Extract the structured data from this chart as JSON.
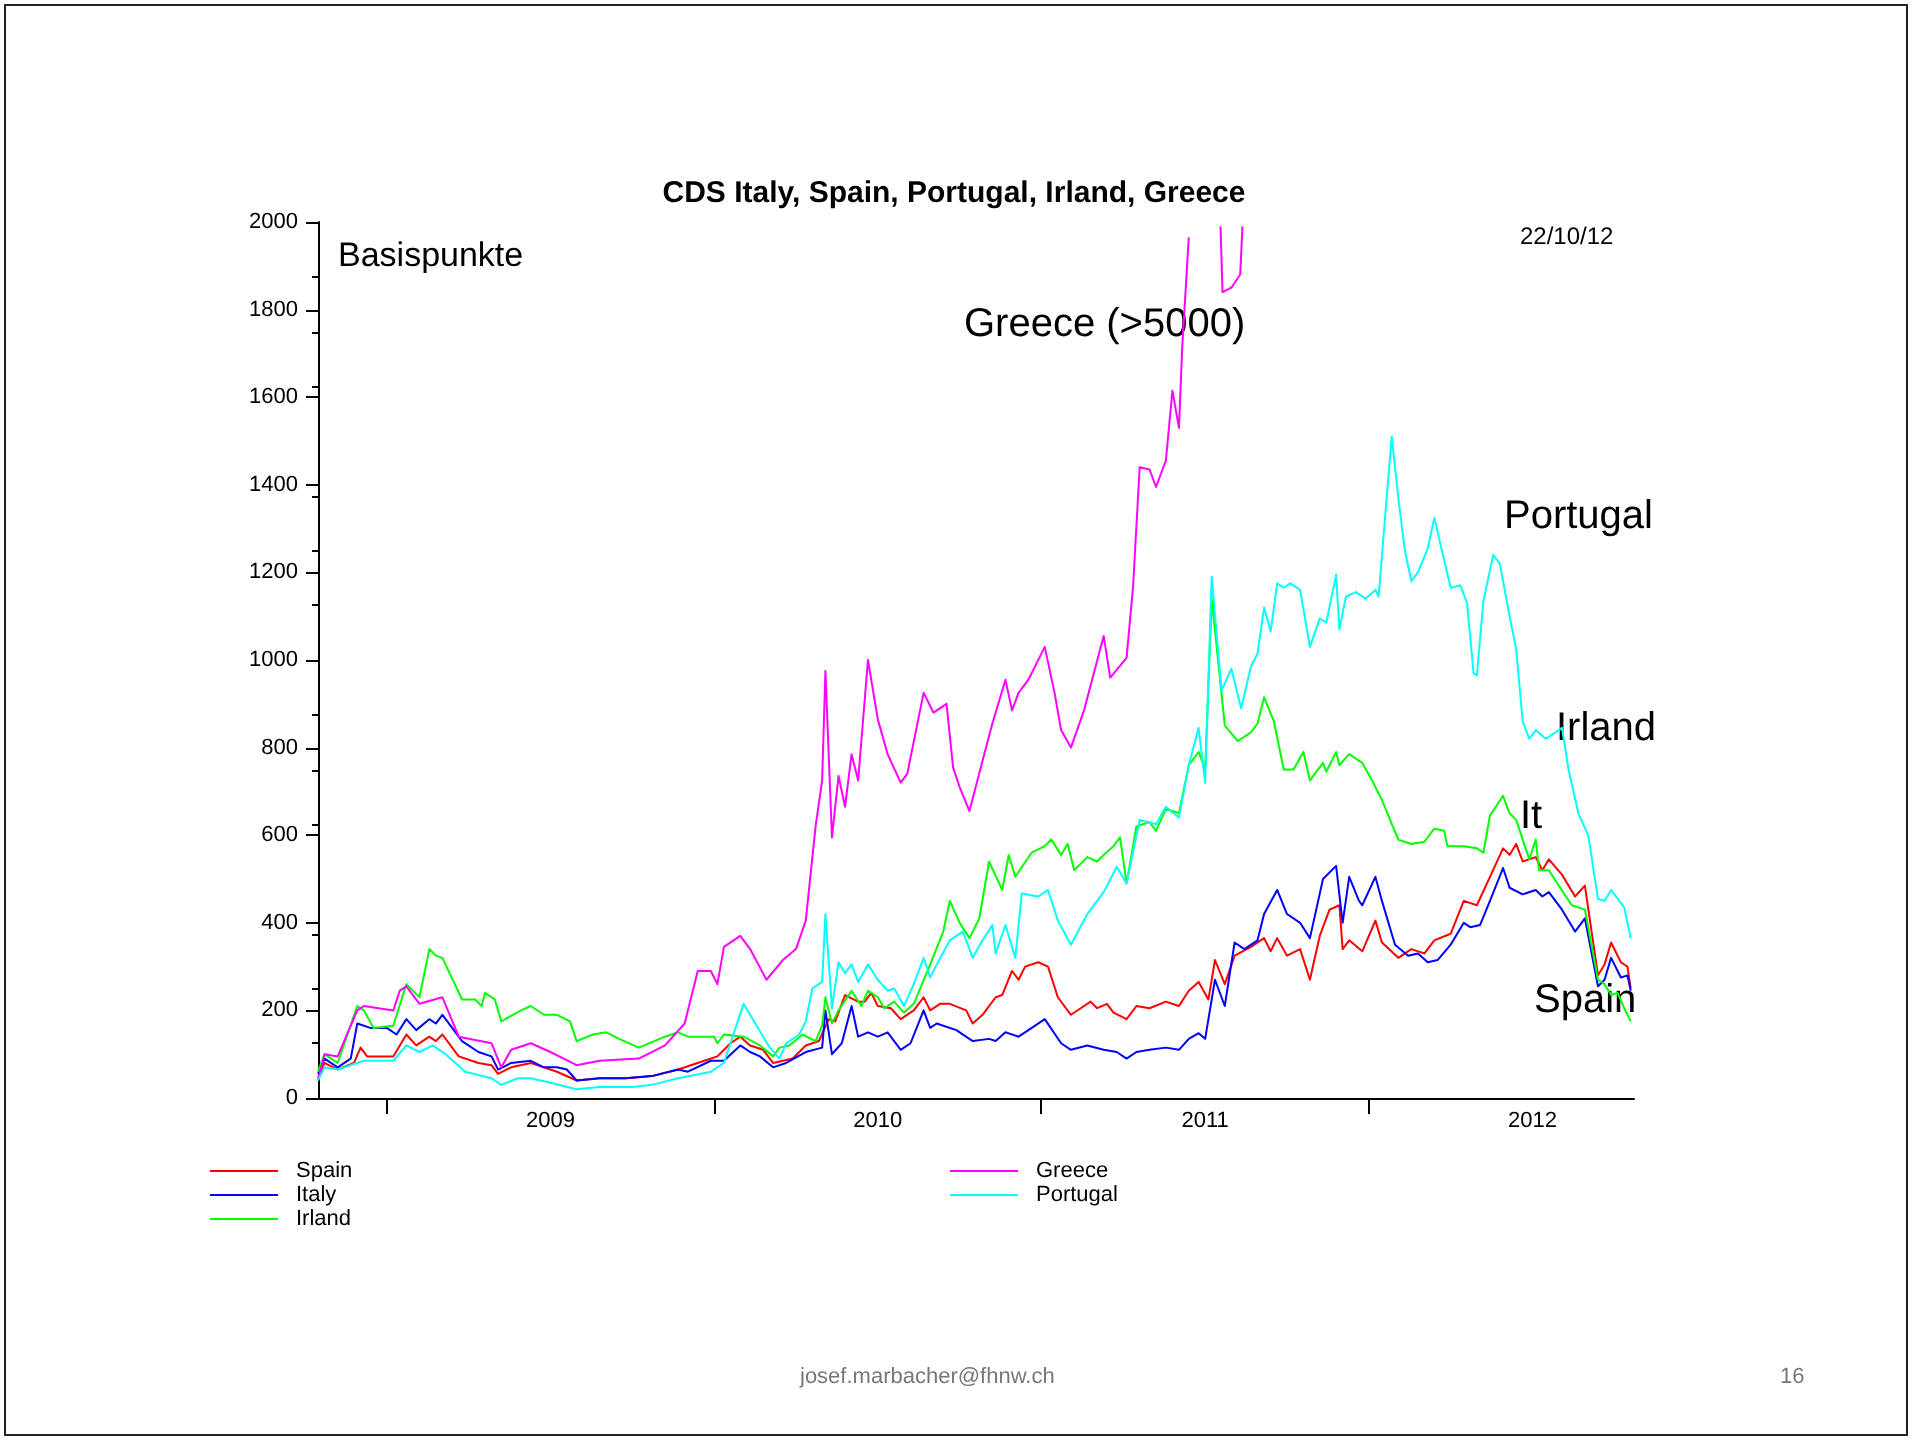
{
  "chart_data": {
    "type": "line",
    "title": "CDS Italy, Spain, Portugal, Irland, Greece",
    "ylabel": "Basispunkte",
    "xlim": [
      2008.79,
      2012.81
    ],
    "xticks": [
      {
        "value": 2009,
        "label": null
      },
      {
        "value": 2009.5,
        "label": "2009"
      },
      {
        "value": 2010,
        "label": null
      },
      {
        "value": 2010.5,
        "label": "2010"
      },
      {
        "value": 2011,
        "label": null
      },
      {
        "value": 2011.5,
        "label": "2011"
      },
      {
        "value": 2012,
        "label": null
      },
      {
        "value": 2012.5,
        "label": "2012"
      }
    ],
    "ylim": [
      0,
      2000
    ],
    "yticks": [
      0,
      200,
      400,
      600,
      800,
      1000,
      1200,
      1400,
      1600,
      1800,
      2000
    ],
    "grid": false,
    "legend": "bottom",
    "marker": "none",
    "line_style": "solid",
    "annotations": [
      "Greece (>5000)",
      "Portugal",
      "Irland",
      "It",
      "Spain",
      "22/10/12",
      "josef.marbacher@fhnw.ch",
      "16"
    ],
    "series": [
      {
        "name": "Spain",
        "color": "#ff0000",
        "x": [
          2008.79,
          2008.81,
          2008.85,
          2008.9,
          2008.92,
          2008.94,
          2009.02,
          2009.06,
          2009.09,
          2009.13,
          2009.15,
          2009.17,
          2009.22,
          2009.28,
          2009.32,
          2009.34,
          2009.38,
          2009.44,
          2009.48,
          2009.52,
          2009.58,
          2009.65,
          2009.73,
          2009.81,
          2009.89,
          2009.97,
          2010.01,
          2010.05,
          2010.08,
          2010.11,
          2010.15,
          2010.18,
          2010.24,
          2010.28,
          2010.32,
          2010.35,
          2010.37,
          2010.4,
          2010.44,
          2010.46,
          2010.48,
          2010.5,
          2010.54,
          2010.57,
          2010.61,
          2010.64,
          2010.66,
          2010.69,
          2010.72,
          2010.77,
          2010.79,
          2010.82,
          2010.86,
          2010.88,
          2010.91,
          2010.93,
          2010.95,
          2010.99,
          2011.02,
          2011.05,
          2011.09,
          2011.12,
          2011.15,
          2011.17,
          2011.2,
          2011.22,
          2011.26,
          2011.29,
          2011.33,
          2011.38,
          2011.42,
          2011.45,
          2011.48,
          2011.51,
          2011.53,
          2011.56,
          2011.59,
          2011.64,
          2011.68,
          2011.7,
          2011.72,
          2011.75,
          2011.79,
          2011.82,
          2011.85,
          2011.88,
          2011.91,
          2011.92,
          2011.94,
          2011.98,
          2012.02,
          2012.04,
          2012.09,
          2012.13,
          2012.17,
          2012.2,
          2012.25,
          2012.29,
          2012.33,
          2012.37,
          2012.41,
          2012.43,
          2012.45,
          2012.47,
          2012.51,
          2012.53,
          2012.55,
          2012.59,
          2012.63,
          2012.66,
          2012.7,
          2012.72,
          2012.74,
          2012.77,
          2012.79,
          2012.8
        ],
        "values": [
          45,
          80,
          65,
          80,
          115,
          95,
          95,
          145,
          120,
          140,
          130,
          145,
          95,
          80,
          75,
          55,
          70,
          80,
          70,
          60,
          40,
          45,
          45,
          50,
          65,
          85,
          95,
          125,
          140,
          120,
          110,
          80,
          90,
          120,
          130,
          180,
          175,
          235,
          220,
          220,
          240,
          210,
          205,
          180,
          200,
          230,
          200,
          215,
          215,
          200,
          170,
          190,
          230,
          235,
          290,
          270,
          300,
          310,
          300,
          230,
          190,
          205,
          220,
          205,
          215,
          195,
          180,
          210,
          205,
          220,
          210,
          245,
          265,
          225,
          315,
          260,
          325,
          345,
          365,
          335,
          365,
          325,
          340,
          270,
          370,
          430,
          440,
          340,
          360,
          335,
          405,
          355,
          320,
          340,
          330,
          360,
          375,
          450,
          440,
          505,
          570,
          555,
          580,
          540,
          550,
          520,
          545,
          510,
          460,
          485,
          280,
          305,
          355,
          310,
          300,
          250
        ]
      },
      {
        "name": "Italy",
        "color": "#0000ff",
        "x": [
          2008.79,
          2008.81,
          2008.85,
          2008.89,
          2008.91,
          2008.95,
          2009.0,
          2009.03,
          2009.06,
          2009.09,
          2009.13,
          2009.15,
          2009.17,
          2009.23,
          2009.28,
          2009.32,
          2009.34,
          2009.38,
          2009.44,
          2009.48,
          2009.52,
          2009.55,
          2009.58,
          2009.65,
          2009.73,
          2009.81,
          2009.89,
          2009.92,
          2009.99,
          2010.03,
          2010.08,
          2010.11,
          2010.14,
          2010.18,
          2010.22,
          2010.28,
          2010.33,
          2010.34,
          2010.36,
          2010.39,
          2010.42,
          2010.44,
          2010.47,
          2010.5,
          2010.53,
          2010.57,
          2010.6,
          2010.64,
          2010.66,
          2010.68,
          2010.74,
          2010.79,
          2010.84,
          2010.86,
          2010.89,
          2010.93,
          2010.96,
          2011.01,
          2011.06,
          2011.09,
          2011.14,
          2011.19,
          2011.23,
          2011.26,
          2011.29,
          2011.33,
          2011.38,
          2011.42,
          2011.45,
          2011.48,
          2011.5,
          2011.53,
          2011.56,
          2011.59,
          2011.62,
          2011.66,
          2011.68,
          2011.72,
          2011.75,
          2011.79,
          2011.82,
          2011.86,
          2011.9,
          2011.92,
          2011.94,
          2011.97,
          2011.98,
          2012.02,
          2012.04,
          2012.08,
          2012.12,
          2012.15,
          2012.18,
          2012.21,
          2012.25,
          2012.29,
          2012.31,
          2012.34,
          2012.37,
          2012.41,
          2012.43,
          2012.47,
          2012.51,
          2012.53,
          2012.55,
          2012.59,
          2012.63,
          2012.66,
          2012.7,
          2012.72,
          2012.74,
          2012.77,
          2012.79,
          2012.8
        ],
        "values": [
          55,
          90,
          70,
          90,
          170,
          160,
          160,
          145,
          180,
          155,
          180,
          170,
          190,
          130,
          105,
          95,
          65,
          80,
          85,
          70,
          70,
          65,
          40,
          45,
          45,
          50,
          65,
          60,
          85,
          85,
          120,
          105,
          95,
          70,
          80,
          105,
          115,
          200,
          100,
          125,
          210,
          140,
          150,
          140,
          150,
          110,
          125,
          200,
          160,
          170,
          155,
          130,
          135,
          130,
          150,
          140,
          155,
          180,
          125,
          110,
          120,
          110,
          105,
          90,
          105,
          110,
          115,
          110,
          135,
          148,
          135,
          270,
          210,
          355,
          340,
          360,
          420,
          475,
          420,
          400,
          365,
          500,
          530,
          400,
          505,
          450,
          440,
          505,
          450,
          350,
          325,
          330,
          310,
          315,
          350,
          400,
          390,
          395,
          450,
          525,
          480,
          465,
          475,
          460,
          470,
          430,
          380,
          410,
          255,
          270,
          320,
          275,
          280,
          245
        ]
      },
      {
        "name": "Irland",
        "color": "#00ff00",
        "x": [
          2008.79,
          2008.81,
          2008.85,
          2008.91,
          2008.93,
          2008.96,
          2009.02,
          2009.06,
          2009.1,
          2009.13,
          2009.15,
          2009.17,
          2009.23,
          2009.27,
          2009.29,
          2009.3,
          2009.33,
          2009.35,
          2009.41,
          2009.44,
          2009.48,
          2009.52,
          2009.56,
          2009.58,
          2009.63,
          2009.67,
          2009.71,
          2009.77,
          2009.85,
          2009.89,
          2009.92,
          2010.0,
          2010.01,
          2010.03,
          2010.09,
          2010.14,
          2010.18,
          2010.2,
          2010.23,
          2010.27,
          2010.31,
          2010.33,
          2010.34,
          2010.36,
          2010.38,
          2010.42,
          2010.45,
          2010.47,
          2010.5,
          2010.52,
          2010.55,
          2010.58,
          2010.61,
          2010.66,
          2010.7,
          2010.72,
          2010.75,
          2010.78,
          2010.81,
          2010.84,
          2010.88,
          2010.9,
          2010.92,
          2010.97,
          2011.01,
          2011.03,
          2011.06,
          2011.08,
          2011.1,
          2011.14,
          2011.17,
          2011.19,
          2011.22,
          2011.24,
          2011.26,
          2011.29,
          2011.33,
          2011.35,
          2011.38,
          2011.42,
          2011.45,
          2011.48,
          2011.5,
          2011.52,
          2011.56,
          2011.6,
          2011.64,
          2011.66,
          2011.68,
          2011.71,
          2011.74,
          2011.77,
          2011.8,
          2011.82,
          2011.86,
          2011.87,
          2011.9,
          2011.91,
          2011.94,
          2011.98,
          2012.01,
          2012.04,
          2012.09,
          2012.13,
          2012.17,
          2012.2,
          2012.23,
          2012.24,
          2012.29,
          2012.33,
          2012.35,
          2012.37,
          2012.41,
          2012.43,
          2012.45,
          2012.49,
          2012.51,
          2012.52,
          2012.55,
          2012.58,
          2012.62,
          2012.66,
          2012.7,
          2012.72,
          2012.74,
          2012.76,
          2012.78,
          2012.8
        ],
        "values": [
          60,
          100,
          80,
          210,
          200,
          160,
          165,
          260,
          230,
          340,
          325,
          320,
          225,
          225,
          210,
          240,
          225,
          175,
          200,
          210,
          190,
          190,
          175,
          130,
          145,
          150,
          135,
          115,
          140,
          150,
          140,
          140,
          125,
          145,
          140,
          120,
          95,
          115,
          120,
          145,
          130,
          165,
          230,
          170,
          200,
          245,
          210,
          245,
          230,
          205,
          220,
          195,
          215,
          305,
          380,
          450,
          400,
          365,
          410,
          540,
          475,
          555,
          505,
          560,
          575,
          590,
          555,
          580,
          520,
          550,
          540,
          555,
          575,
          595,
          490,
          620,
          630,
          610,
          660,
          650,
          760,
          790,
          750,
          1140,
          850,
          815,
          835,
          855,
          915,
          860,
          750,
          750,
          790,
          725,
          765,
          745,
          790,
          760,
          785,
          765,
          725,
          680,
          590,
          580,
          585,
          615,
          610,
          575,
          575,
          570,
          560,
          645,
          690,
          650,
          635,
          545,
          590,
          520,
          520,
          485,
          440,
          430,
          270,
          260,
          235,
          240,
          205,
          175
        ]
      },
      {
        "name": "Greece",
        "color": "#ff00ff",
        "x": [
          2008.79,
          2008.81,
          2008.85,
          2008.91,
          2008.93,
          2009.02,
          2009.04,
          2009.06,
          2009.1,
          2009.17,
          2009.22,
          2009.32,
          2009.35,
          2009.38,
          2009.44,
          2009.5,
          2009.58,
          2009.65,
          2009.77,
          2009.85,
          2009.91,
          2009.95,
          2009.99,
          2010.01,
          2010.03,
          2010.08,
          2010.11,
          2010.16,
          2010.21,
          2010.25,
          2010.28,
          2010.31,
          2010.33,
          2010.34,
          2010.36,
          2010.38,
          2010.4,
          2010.42,
          2010.44,
          2010.47,
          2010.5,
          2010.53,
          2010.57,
          2010.59,
          2010.64,
          2010.67,
          2010.71,
          2010.73,
          2010.75,
          2010.78,
          2010.82,
          2010.85,
          2010.89,
          2010.91,
          2010.93,
          2010.96,
          2011.01,
          2011.04,
          2011.06,
          2011.09,
          2011.13,
          2011.16,
          2011.19,
          2011.21,
          2011.26,
          2011.28,
          2011.3,
          2011.33,
          2011.35,
          2011.38,
          2011.4,
          2011.42,
          2011.43,
          2011.45,
          2011.5,
          2011.547,
          2011.553,
          2011.58,
          2011.607,
          2011.614
        ],
        "values": [
          40,
          100,
          95,
          200,
          210,
          200,
          245,
          255,
          215,
          230,
          140,
          125,
          70,
          110,
          125,
          105,
          75,
          85,
          90,
          120,
          170,
          290,
          290,
          260,
          345,
          370,
          340,
          270,
          315,
          340,
          405,
          620,
          725,
          975,
          595,
          735,
          665,
          785,
          725,
          1000,
          865,
          785,
          720,
          740,
          925,
          880,
          900,
          755,
          710,
          655,
          770,
          855,
          955,
          885,
          925,
          955,
          1030,
          925,
          840,
          800,
          885,
          970,
          1055,
          960,
          1005,
          1170,
          1440,
          1435,
          1395,
          1455,
          1615,
          1530,
          1715,
          1965,
          null,
          1990,
          1840,
          1850,
          1880,
          1990
        ]
      },
      {
        "name": "Portugal",
        "color": "#00ffff",
        "x": [
          2008.79,
          2008.81,
          2008.85,
          2008.91,
          2008.93,
          2009.02,
          2009.06,
          2009.1,
          2009.14,
          2009.18,
          2009.24,
          2009.32,
          2009.35,
          2009.4,
          2009.44,
          2009.5,
          2009.58,
          2009.65,
          2009.75,
          2009.81,
          2009.89,
          2009.99,
          2010.03,
          2010.09,
          2010.13,
          2010.17,
          2010.2,
          2010.22,
          2010.26,
          2010.28,
          2010.3,
          2010.33,
          2010.34,
          2010.36,
          2010.38,
          2010.4,
          2010.42,
          2010.44,
          2010.47,
          2010.5,
          2010.53,
          2010.55,
          2010.58,
          2010.61,
          2010.64,
          2010.66,
          2010.68,
          2010.72,
          2010.76,
          2010.79,
          2010.82,
          2010.85,
          2010.86,
          2010.89,
          2010.92,
          2010.94,
          2010.99,
          2011.02,
          2011.05,
          2011.09,
          2011.14,
          2011.19,
          2011.23,
          2011.26,
          2011.3,
          2011.35,
          2011.38,
          2011.42,
          2011.45,
          2011.48,
          2011.5,
          2011.52,
          2011.55,
          2011.58,
          2011.61,
          2011.64,
          2011.66,
          2011.68,
          2011.7,
          2011.72,
          2011.74,
          2011.76,
          2011.79,
          2011.82,
          2011.85,
          2011.87,
          2011.9,
          2011.91,
          2011.93,
          2011.96,
          2011.99,
          2012.02,
          2012.03,
          2012.05,
          2012.07,
          2012.09,
          2012.11,
          2012.13,
          2012.15,
          2012.18,
          2012.2,
          2012.22,
          2012.25,
          2012.28,
          2012.3,
          2012.32,
          2012.33,
          2012.35,
          2012.38,
          2012.4,
          2012.43,
          2012.45,
          2012.47,
          2012.49,
          2012.51,
          2012.54,
          2012.56,
          2012.59,
          2012.61,
          2012.64,
          2012.67,
          2012.7,
          2012.72,
          2012.74,
          2012.78,
          2012.8
        ],
        "values": [
          40,
          70,
          65,
          80,
          85,
          85,
          120,
          105,
          120,
          100,
          60,
          45,
          30,
          45,
          45,
          35,
          20,
          25,
          25,
          30,
          45,
          60,
          80,
          215,
          165,
          115,
          90,
          125,
          145,
          175,
          250,
          265,
          420,
          205,
          310,
          285,
          305,
          265,
          305,
          270,
          245,
          250,
          210,
          260,
          320,
          275,
          305,
          360,
          380,
          320,
          360,
          395,
          330,
          395,
          320,
          467,
          460,
          475,
          405,
          350,
          420,
          470,
          528,
          490,
          635,
          625,
          665,
          640,
          760,
          845,
          720,
          1190,
          930,
          980,
          890,
          985,
          1015,
          1120,
          1065,
          1175,
          1165,
          1175,
          1160,
          1030,
          1095,
          1085,
          1195,
          1070,
          1145,
          1155,
          1140,
          1160,
          1145,
          1330,
          1510,
          1370,
          1250,
          1180,
          1200,
          1255,
          1325,
          1260,
          1165,
          1170,
          1130,
          970,
          965,
          1135,
          1240,
          1220,
          1100,
          1025,
          860,
          820,
          840,
          820,
          830,
          845,
          750,
          650,
          600,
          455,
          450,
          475,
          435,
          365
        ]
      }
    ]
  }
}
